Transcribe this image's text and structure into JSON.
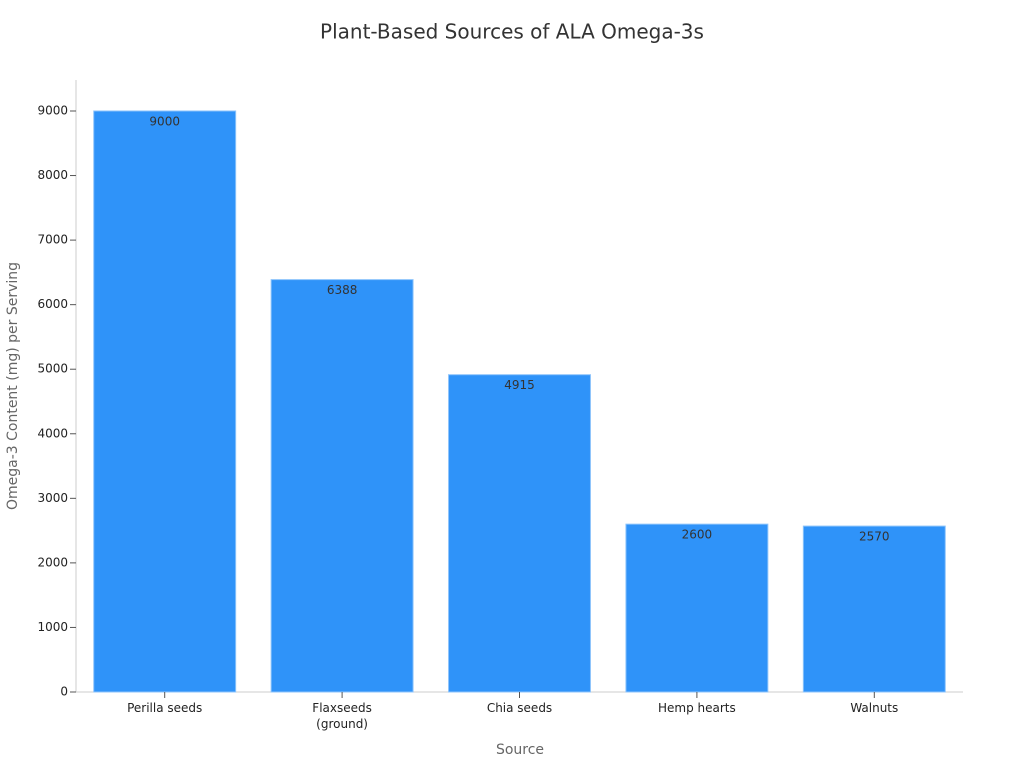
{
  "chart_data": {
    "type": "bar",
    "title": "Plant-Based Sources of ALA Omega-3s",
    "x_label": "Source",
    "y_label": "Omega-3 Content (mg) per Serving",
    "categories": [
      "Perilla seeds",
      "Flaxseeds\n(ground)",
      "Chia seeds",
      "Hemp hearts",
      "Walnuts"
    ],
    "values": [
      9000,
      6388,
      4915,
      2600,
      2570
    ],
    "color": "#2f93f9",
    "ylim": [
      0,
      9480
    ],
    "yticks": [
      0,
      1000,
      2000,
      3000,
      4000,
      5000,
      6000,
      7000,
      8000,
      9000
    ],
    "grid": false
  }
}
